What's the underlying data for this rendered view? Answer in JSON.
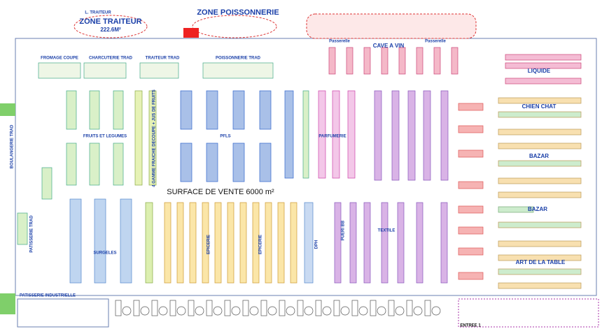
{
  "labels": {
    "zone_traiteur": "ZONE TRAITEUR",
    "zone_traiteur_area": "222.6M²",
    "zone_poissonnerie": "ZONE POISSONNERIE",
    "l_traiteur": "L. TRAITEUR",
    "cave_a_vin": "CAVE A VIN",
    "passerelle_left": "Passerelle",
    "passerelle_right": "Passerelle",
    "liquide": "LIQUIDE",
    "chien_chat": "CHIEN CHAT",
    "bazar_top": "BAZAR",
    "bazar_bottom": "BAZAR",
    "art_de_la_table": "ART DE LA TABLE",
    "fruits_legumes": "FRUITS ET LEGUMES",
    "pfls": "PFLS",
    "parfumerie": "PARFUMERIE",
    "surface": "SURFACE   DE   VENTE 6000 m²",
    "surgeles": "SURGELES",
    "epicerie_left": "EPICERIE",
    "epicerie_right": "EPICERIE",
    "dph": "DPH",
    "pueri_bb": "PUERI BB",
    "textile": "TEXTILE",
    "fromage": "FROMAGE COUPE",
    "charcuterie": "CHARCUTERIE TRAD",
    "traiteur_trad": "TRAITEUR TRAD",
    "poissonnerie_trad": "POISSONNERIE TRAD",
    "quatre_gamme": "4 GAMME FRAICHE DECOUPE + JUS DE FRUITS",
    "entree": "ENTREE 1",
    "patisserie_ind": "PATISSERIE INDUSTRIELLE",
    "boulangerie": "BOULANGERIE TRAD",
    "patisserie_trad": "PATISSERIE TRAD"
  }
}
